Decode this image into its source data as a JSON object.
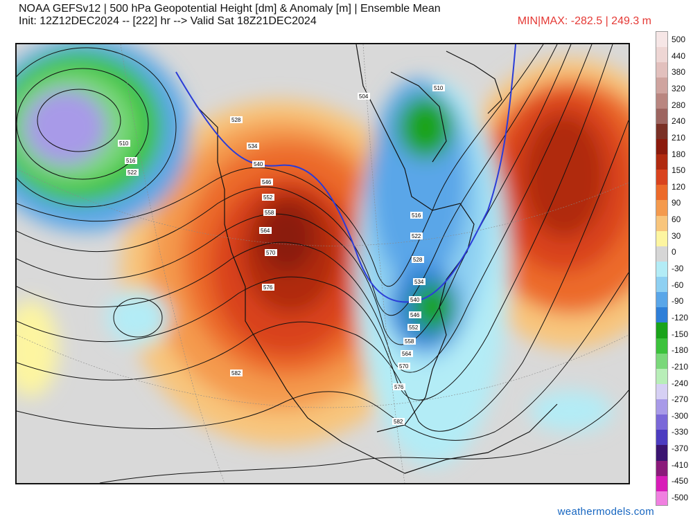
{
  "header": {
    "title_line1": "NOAA GEFSv12 | 500 hPa Geopotential Height [dm] & Anomaly [m] | Ensemble Mean",
    "title_line2": "Init: 12Z12DEC2024 -- [222] hr --> Valid Sat 18Z21DEC2024",
    "minmax": "MIN|MAX: -282.5 | 249.3 m"
  },
  "credit": "weathermodels.com",
  "colorbar": {
    "labels": [
      "500",
      "440",
      "380",
      "320",
      "280",
      "240",
      "210",
      "180",
      "150",
      "120",
      "90",
      "60",
      "30",
      "0",
      "-30",
      "-60",
      "-90",
      "-120",
      "-150",
      "-180",
      "-210",
      "-240",
      "-270",
      "-300",
      "-330",
      "-370",
      "-410",
      "-450",
      "-500"
    ],
    "colors": [
      "#f6e6e6",
      "#eed6d4",
      "#e2c0bd",
      "#cfa49f",
      "#b98680",
      "#9d6560",
      "#7a3025",
      "#8b1a0c",
      "#b02a10",
      "#d9431e",
      "#ec6a2a",
      "#f49a4e",
      "#f8c57c",
      "#fdf5a0",
      "#d6d6d6",
      "#b3ecf6",
      "#8ed0f2",
      "#5aa6e8",
      "#2f7fd8",
      "#1aa31a",
      "#3cc23c",
      "#7ad87a",
      "#b8eeb8",
      "#d6d0f4",
      "#a89ae8",
      "#7a68d8",
      "#4c3cc0",
      "#3a1470",
      "#8a1a7a",
      "#d81cb8",
      "#f080e0"
    ]
  },
  "contour_labels": [
    "510",
    "516",
    "522",
    "528",
    "534",
    "540",
    "546",
    "552",
    "558",
    "564",
    "570",
    "576",
    "582",
    "504",
    "510",
    "516",
    "522",
    "528",
    "534",
    "540",
    "546",
    "552",
    "558",
    "564",
    "570",
    "576",
    "582"
  ],
  "map": {
    "name": "North America 500 hPa",
    "anomaly_scale_unit": "m",
    "height_unit": "dm"
  }
}
